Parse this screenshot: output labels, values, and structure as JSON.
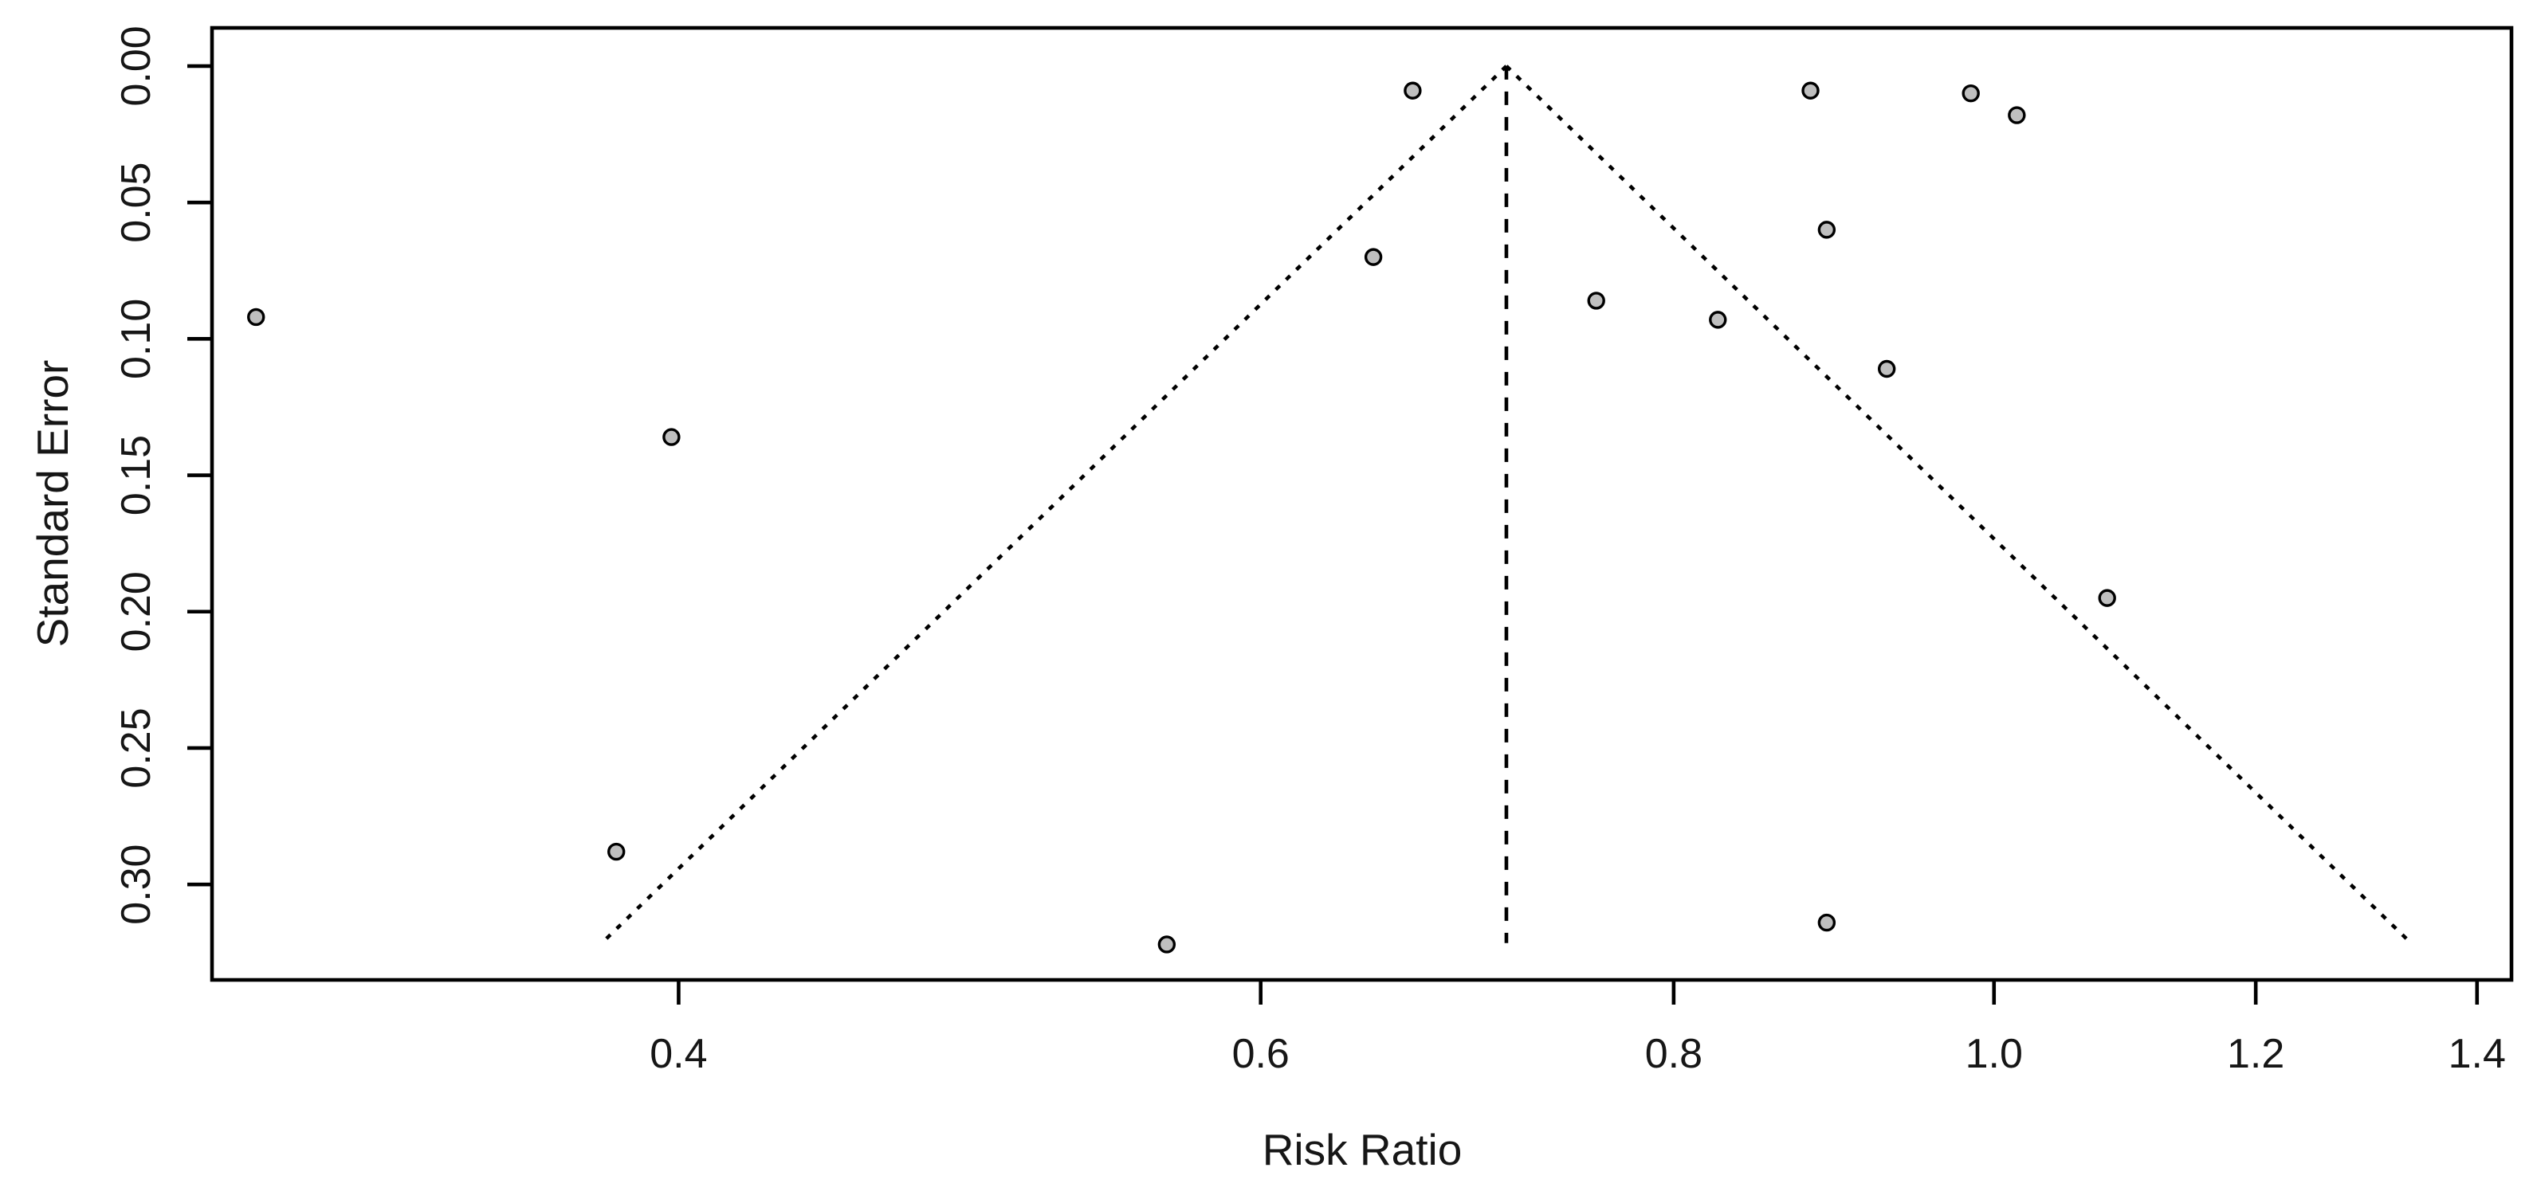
{
  "figure": {
    "kind": "funnel-plot",
    "background": "#ffffff"
  },
  "chart_data": {
    "type": "scatter",
    "subtype": "meta-analysis-funnel-plot",
    "title": "",
    "xlabel": "Risk Ratio",
    "ylabel": "Standard Error",
    "x_scale": "log",
    "y_inverted": true,
    "xlim": [
      0.289,
      1.434
    ],
    "ylim": [
      -0.014,
      0.335
    ],
    "x_ticks": [
      {
        "value": 0.4,
        "label": "0.4"
      },
      {
        "value": 0.6,
        "label": "0.6"
      },
      {
        "value": 0.8,
        "label": "0.8"
      },
      {
        "value": 1.0,
        "label": "1.0"
      },
      {
        "value": 1.2,
        "label": "1.2"
      },
      {
        "value": 1.4,
        "label": "1.4"
      }
    ],
    "y_ticks": [
      {
        "value": 0.0,
        "label": "0.00"
      },
      {
        "value": 0.05,
        "label": "0.05"
      },
      {
        "value": 0.1,
        "label": "0.10"
      },
      {
        "value": 0.15,
        "label": "0.15"
      },
      {
        "value": 0.2,
        "label": "0.20"
      },
      {
        "value": 0.25,
        "label": "0.25"
      },
      {
        "value": 0.3,
        "label": "0.30"
      }
    ],
    "funnel": {
      "center_estimate": 0.712,
      "z_multiplier": 1.96,
      "se_top": 0.0,
      "se_bottom": 0.3215,
      "center_line_style": "dashed",
      "edge_line_style": "dotted"
    },
    "points": [
      {
        "rr": 0.298,
        "se": 0.092
      },
      {
        "rr": 0.398,
        "se": 0.136
      },
      {
        "rr": 0.383,
        "se": 0.288
      },
      {
        "rr": 0.562,
        "se": 0.322
      },
      {
        "rr": 0.649,
        "se": 0.07
      },
      {
        "rr": 0.667,
        "se": 0.009
      },
      {
        "rr": 0.758,
        "se": 0.086
      },
      {
        "rr": 0.825,
        "se": 0.093
      },
      {
        "rr": 0.88,
        "se": 0.009
      },
      {
        "rr": 0.89,
        "se": 0.06
      },
      {
        "rr": 0.928,
        "se": 0.111
      },
      {
        "rr": 0.984,
        "se": 0.01
      },
      {
        "rr": 1.016,
        "se": 0.018
      },
      {
        "rr": 1.082,
        "se": 0.195
      },
      {
        "rr": 0.89,
        "se": 0.314
      }
    ],
    "marker": {
      "shape": "circle",
      "fill": "#bfbfbf",
      "stroke": "#000000"
    },
    "colors": {
      "axis": "#000000",
      "text": "#161616",
      "background": "#ffffff"
    },
    "grid": false,
    "legend": null
  }
}
